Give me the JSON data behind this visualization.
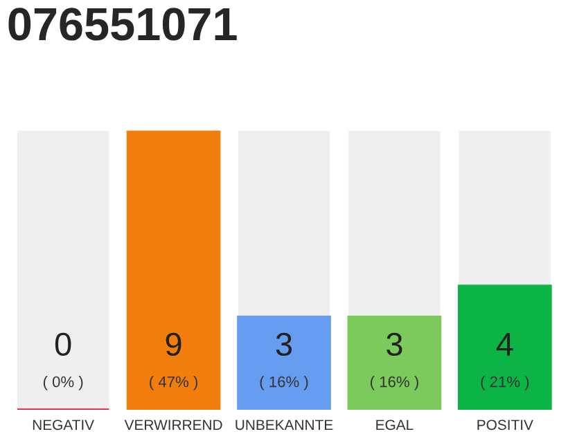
{
  "chart_data": {
    "type": "bar",
    "title": "076551071",
    "categories": [
      "NEGATIV",
      "VERWIRREND",
      "UNBEKANNTE",
      "EGAL",
      "POSITIV"
    ],
    "values": [
      0,
      9,
      3,
      3,
      4
    ],
    "colors": [
      "#e8143c",
      "#f07d0c",
      "#679df0",
      "#7cc95c",
      "#0cb446"
    ],
    "data_labels": true,
    "annotations": [
      "( 0% )",
      "( 47% )",
      "( 16% )",
      "( 16% )",
      "( 21% )"
    ],
    "grid": false,
    "legend": false
  }
}
